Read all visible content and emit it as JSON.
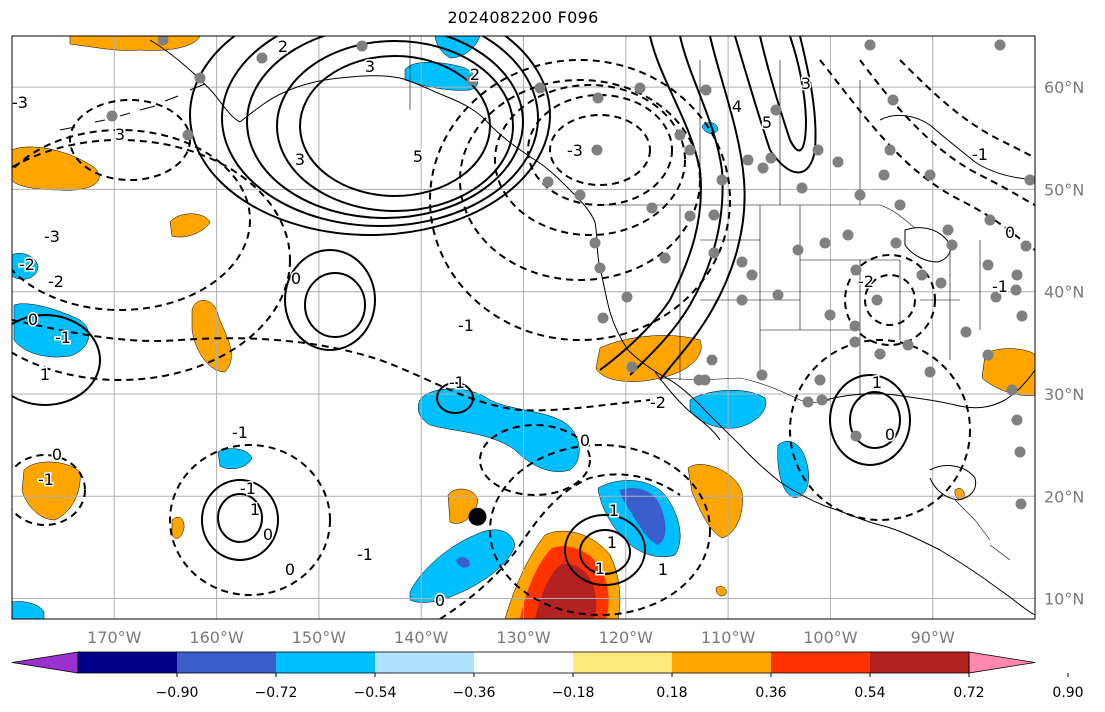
{
  "title": "2024082200 F096",
  "map": {
    "lon_range": [
      -180,
      -80
    ],
    "lat_range": [
      8,
      65
    ],
    "projection": "equirectangular",
    "grid": true,
    "colors": {
      "land_outline": "#000000",
      "grid": "#b0b0b0",
      "contour": "#000000",
      "station_dot": "#808080"
    }
  },
  "longitude_labels": [
    "170°W",
    "160°W",
    "150°W",
    "140°W",
    "130°W",
    "120°W",
    "110°W",
    "100°W",
    "90°W"
  ],
  "latitude_labels": [
    "60°N",
    "50°N",
    "40°N",
    "30°N",
    "20°N",
    "10°N"
  ],
  "contour_labels": [
    "2",
    "3",
    "5",
    "3",
    "5",
    "2",
    "3",
    "4",
    "3",
    "-3",
    "-1",
    "0",
    "-3",
    "-2",
    "0",
    "1",
    "-1",
    "0",
    "-1",
    "-2",
    "-1",
    "0",
    "0",
    "1",
    "0",
    "-1",
    "0",
    "1",
    "1",
    "-1",
    "-2",
    "1",
    "0",
    "-1",
    "0",
    "-1",
    "-2",
    "1",
    "-3",
    "1",
    "-1"
  ],
  "colorbar": {
    "ticks": [
      "−0.90",
      "−0.72",
      "−0.54",
      "−0.36",
      "−0.18",
      "0.18",
      "0.36",
      "0.54",
      "0.72",
      "0.90"
    ],
    "colors": [
      "#9a30d0",
      "#00008b",
      "#3a5fcd",
      "#00bfff",
      "#b0e2ff",
      "#ffffff",
      "#ffe87c",
      "#ffa500",
      "#ff3300",
      "#b22222",
      "#ff88b0"
    ]
  },
  "markers": [
    {
      "name": "storm-center-marker",
      "lon": -134.5,
      "lat": 18.0,
      "color": "#000000"
    }
  ]
}
